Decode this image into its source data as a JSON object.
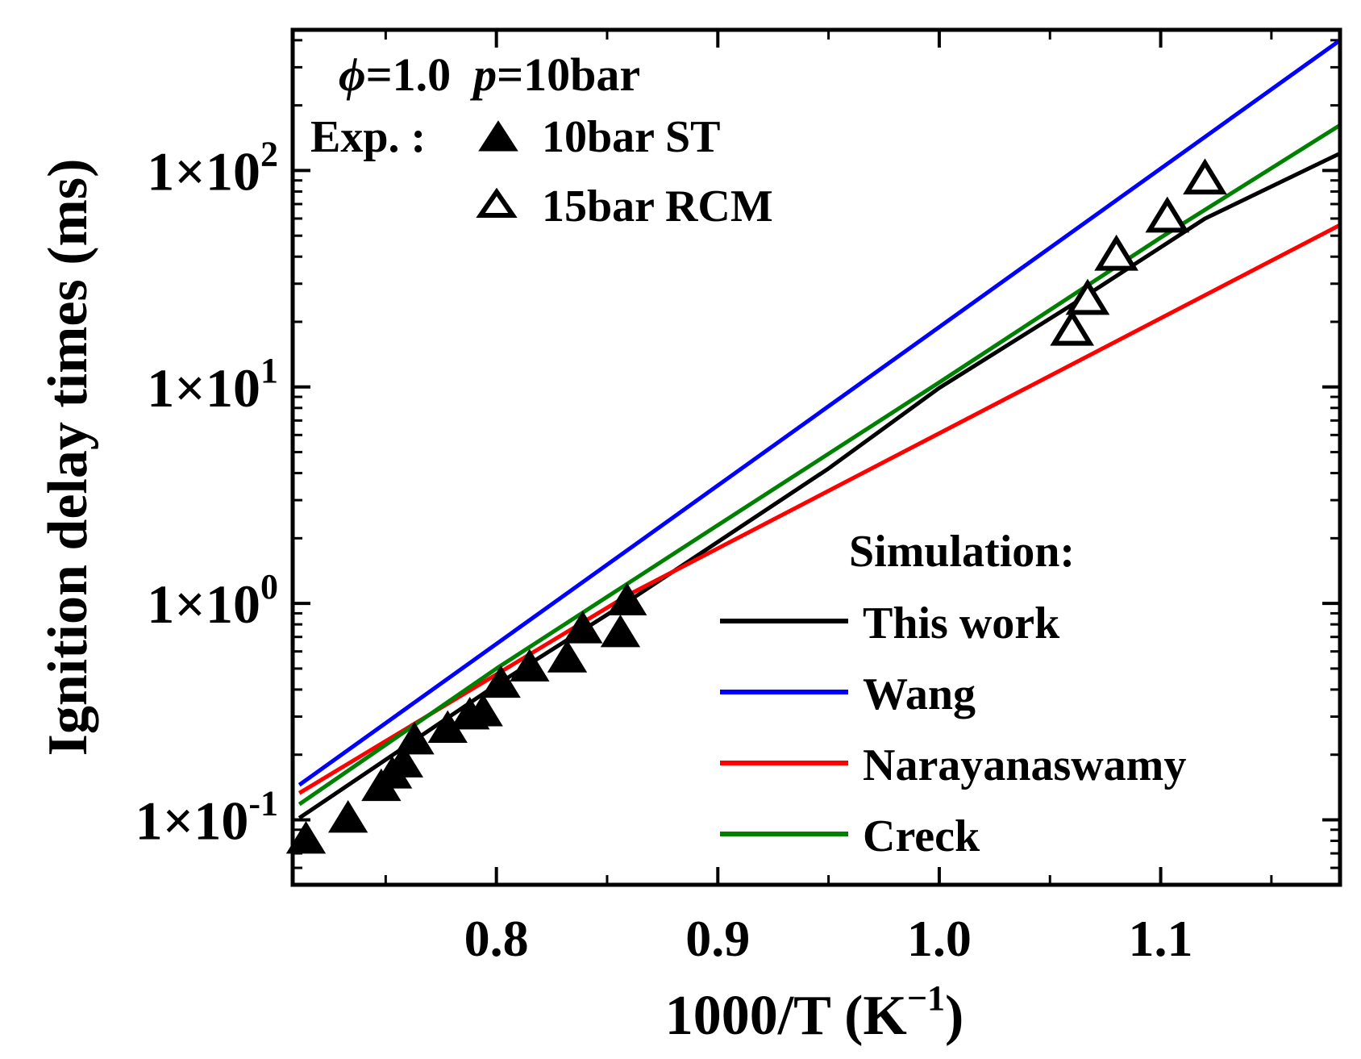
{
  "chart_data": {
    "type": "scatter",
    "title": "",
    "xlabel": "1000/T (K",
    "xlabel_exponent": "−1",
    "xlabel_close": ")",
    "ylabel": "Ignition delay times (ms)",
    "xlim": [
      0.708,
      1.181
    ],
    "ylim_log10": [
      -1.3,
      2.65
    ],
    "yscale": "log",
    "x_ticks": [
      {
        "value": 0.8,
        "label": "0.8"
      },
      {
        "value": 0.9,
        "label": "0.9"
      },
      {
        "value": 1.0,
        "label": "1.0"
      },
      {
        "value": 1.1,
        "label": "1.1"
      }
    ],
    "y_ticks": [
      {
        "exp": -1,
        "base": "1×10",
        "sup": "-1"
      },
      {
        "exp": 0,
        "base": "1×10",
        "sup": "0"
      },
      {
        "exp": 1,
        "base": "1×10",
        "sup": "1"
      },
      {
        "exp": 2,
        "base": "1×10",
        "sup": "2"
      }
    ],
    "conditions": {
      "phi_symbol": "ϕ",
      "phi_value": "=1.0",
      "p_symbol": "p",
      "p_value": "=10bar"
    },
    "experiment_legend": {
      "title": "Exp. :",
      "entries": [
        "10bar ST",
        "15bar RCM"
      ]
    },
    "simulation_legend": {
      "title": "Simulation:",
      "entries": [
        "This work",
        "Wang",
        "Narayanaswamy",
        "Creck"
      ]
    },
    "experiments": [
      {
        "name": "10bar ST",
        "marker": "filled-triangle",
        "points": [
          [
            0.714,
            0.08
          ],
          [
            0.733,
            0.1
          ],
          [
            0.748,
            0.14
          ],
          [
            0.753,
            0.16
          ],
          [
            0.758,
            0.18
          ],
          [
            0.763,
            0.23
          ],
          [
            0.778,
            0.26
          ],
          [
            0.788,
            0.3
          ],
          [
            0.794,
            0.31
          ],
          [
            0.802,
            0.42
          ],
          [
            0.815,
            0.5
          ],
          [
            0.832,
            0.55
          ],
          [
            0.839,
            0.75
          ],
          [
            0.856,
            0.72
          ],
          [
            0.859,
            1.01
          ]
        ]
      },
      {
        "name": "15bar RCM",
        "marker": "open-triangle",
        "points": [
          [
            1.06,
            18
          ],
          [
            1.067,
            25
          ],
          [
            1.08,
            40
          ],
          [
            1.103,
            60
          ],
          [
            1.12,
            90
          ]
        ]
      }
    ],
    "series": [
      {
        "name": "This work",
        "color": "#000000",
        "points": [
          [
            0.711,
            0.102
          ],
          [
            0.8,
            0.42
          ],
          [
            0.86,
            1.03
          ],
          [
            0.95,
            4.2
          ],
          [
            1.0,
            9.9
          ],
          [
            1.06,
            24
          ],
          [
            1.12,
            60
          ],
          [
            1.181,
            120
          ]
        ]
      },
      {
        "name": "Wang",
        "color": "#0000ff",
        "points": [
          [
            0.711,
            0.145
          ],
          [
            1.181,
            400
          ]
        ]
      },
      {
        "name": "Narayanaswamy",
        "color": "#ff0000",
        "points": [
          [
            0.711,
            0.133
          ],
          [
            0.86,
            1.1
          ],
          [
            1.181,
            56
          ]
        ]
      },
      {
        "name": "Creck",
        "color": "#008000",
        "points": [
          [
            0.711,
            0.118
          ],
          [
            0.8,
            0.5
          ],
          [
            0.9,
            2.3
          ],
          [
            1.0,
            10.5
          ],
          [
            1.1,
            49
          ],
          [
            1.181,
            162
          ]
        ]
      }
    ]
  }
}
